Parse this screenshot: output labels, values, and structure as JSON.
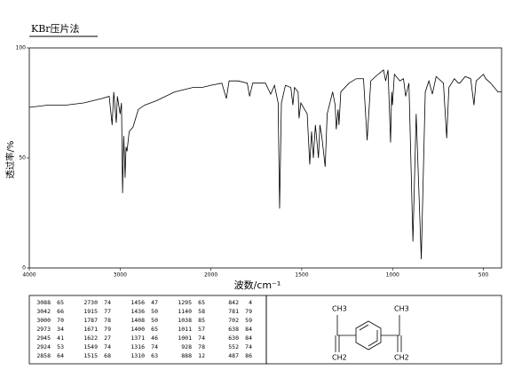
{
  "chart_data": {
    "type": "line",
    "title": "KBr压片法",
    "x_label": "波数/cm⁻¹",
    "y_label": "透过率/%",
    "xlim": [
      4000,
      400
    ],
    "xticks": [
      4000,
      3000,
      2000,
      1500,
      1000,
      500
    ],
    "ylim": [
      0,
      100
    ],
    "yticks": [
      0,
      50,
      100
    ],
    "color": "#000000",
    "x": [
      4000,
      3800,
      3600,
      3400,
      3200,
      3120,
      3088,
      3070,
      3042,
      3030,
      3000,
      2985,
      2973,
      2960,
      2945,
      2935,
      2924,
      2900,
      2858,
      2800,
      2730,
      2600,
      2400,
      2200,
      2100,
      2000,
      1940,
      1915,
      1900,
      1850,
      1800,
      1787,
      1770,
      1700,
      1671,
      1650,
      1630,
      1622,
      1612,
      1590,
      1560,
      1549,
      1540,
      1520,
      1515,
      1505,
      1470,
      1456,
      1446,
      1436,
      1425,
      1408,
      1400,
      1390,
      1371,
      1360,
      1330,
      1316,
      1310,
      1300,
      1295,
      1285,
      1240,
      1200,
      1160,
      1140,
      1120,
      1080,
      1050,
      1038,
      1025,
      1011,
      1005,
      1001,
      990,
      960,
      940,
      928,
      910,
      888,
      870,
      842,
      820,
      800,
      781,
      760,
      720,
      702,
      690,
      660,
      638,
      630,
      600,
      570,
      552,
      540,
      500,
      487,
      460,
      420,
      400
    ],
    "values": [
      73,
      74,
      74,
      75,
      77,
      78,
      65,
      80,
      66,
      78,
      70,
      75,
      34,
      60,
      41,
      55,
      53,
      62,
      64,
      72,
      74,
      76,
      80,
      82,
      82,
      83,
      84,
      77,
      85,
      85,
      84,
      78,
      84,
      84,
      79,
      83,
      75,
      27,
      75,
      83,
      82,
      74,
      82,
      80,
      68,
      75,
      70,
      47,
      62,
      50,
      65,
      50,
      65,
      60,
      46,
      70,
      80,
      74,
      63,
      72,
      65,
      80,
      84,
      86,
      86,
      58,
      85,
      88,
      90,
      85,
      90,
      57,
      80,
      74,
      88,
      85,
      86,
      78,
      84,
      12,
      70,
      4,
      80,
      85,
      79,
      87,
      84,
      59,
      82,
      86,
      84,
      84,
      87,
      86,
      74,
      85,
      88,
      86,
      84,
      80,
      80
    ]
  },
  "peak_table": {
    "rows": [
      [
        [
          3088,
          65
        ],
        [
          2730,
          74
        ],
        [
          1456,
          47
        ],
        [
          1295,
          65
        ],
        [
          842,
          4
        ]
      ],
      [
        [
          3042,
          66
        ],
        [
          1915,
          77
        ],
        [
          1436,
          50
        ],
        [
          1140,
          58
        ],
        [
          781,
          79
        ]
      ],
      [
        [
          3000,
          70
        ],
        [
          1787,
          78
        ],
        [
          1408,
          50
        ],
        [
          1038,
          85
        ],
        [
          702,
          59
        ]
      ],
      [
        [
          2973,
          34
        ],
        [
          1671,
          79
        ],
        [
          1400,
          65
        ],
        [
          1011,
          57
        ],
        [
          638,
          84
        ]
      ],
      [
        [
          2945,
          41
        ],
        [
          1622,
          27
        ],
        [
          1371,
          46
        ],
        [
          1001,
          74
        ],
        [
          630,
          84
        ]
      ],
      [
        [
          2924,
          53
        ],
        [
          1549,
          74
        ],
        [
          1316,
          74
        ],
        [
          928,
          78
        ],
        [
          552,
          74
        ]
      ],
      [
        [
          2858,
          64
        ],
        [
          1515,
          68
        ],
        [
          1310,
          63
        ],
        [
          888,
          12
        ],
        [
          487,
          86
        ]
      ]
    ]
  },
  "structure": {
    "labels": [
      "CH3",
      "CH3",
      "CH2",
      "CH2"
    ]
  }
}
